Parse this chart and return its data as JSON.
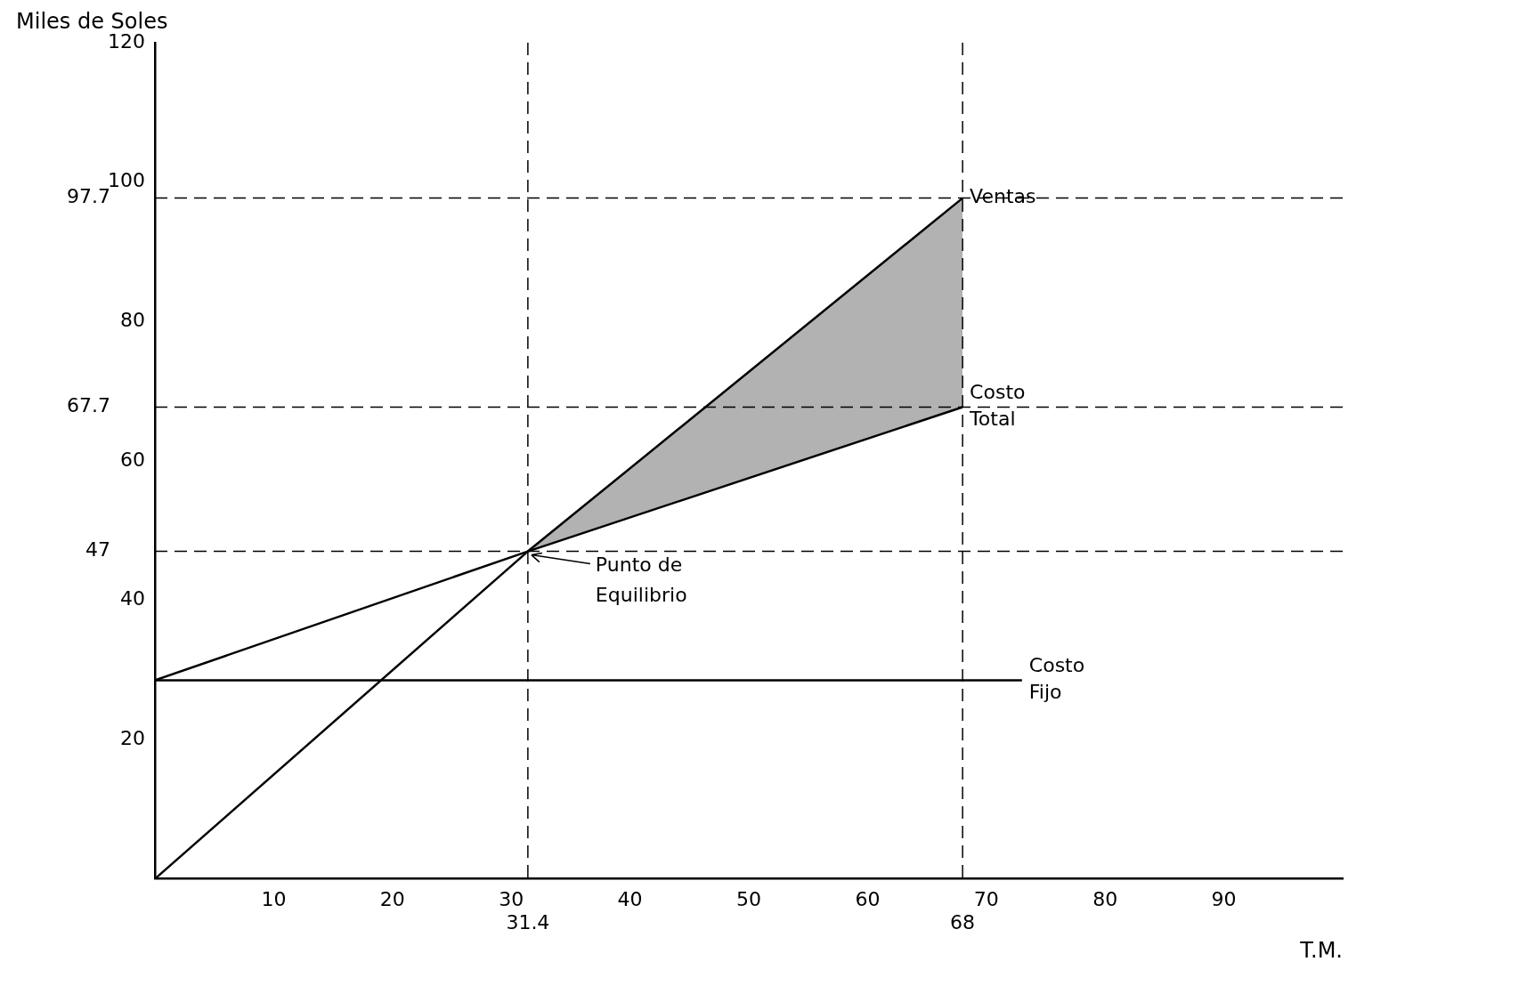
{
  "chart_data": {
    "type": "line",
    "xlabel": "T.M.",
    "ylabel": "Miles de Soles",
    "xlim": [
      0,
      100
    ],
    "ylim": [
      0,
      120
    ],
    "xticks": [
      10,
      20,
      30,
      40,
      50,
      60,
      70,
      80,
      90
    ],
    "yticks": [
      20,
      40,
      60,
      80,
      100,
      120
    ],
    "grid": false,
    "legend": false,
    "marker": "none",
    "line_style": "solid",
    "series": [
      {
        "name": "Ventas",
        "color": "#000000",
        "x": [
          0,
          31.4,
          68
        ],
        "values": [
          0,
          47,
          97.7
        ],
        "lower": [
          null,
          47,
          67.7
        ],
        "upper": [
          null,
          47,
          97.7
        ]
      },
      {
        "name": "Costo Total",
        "color": "#000000",
        "x": [
          0,
          31.4,
          68
        ],
        "values": [
          28.5,
          47,
          67.7
        ]
      },
      {
        "name": "Costo Fijo",
        "color": "#000000",
        "x": [
          0,
          73
        ],
        "values": [
          28.5,
          28.5
        ]
      }
    ],
    "ref_lines": [
      {
        "axis": "y",
        "value": 97.7,
        "label": "97.7",
        "line_style": "dashed"
      },
      {
        "axis": "y",
        "value": 67.7,
        "label": "67.7",
        "line_style": "dashed"
      },
      {
        "axis": "y",
        "value": 47,
        "label": "47",
        "line_style": "dashed"
      },
      {
        "axis": "x",
        "value": 31.4,
        "label": "31.4",
        "line_style": "dashed"
      },
      {
        "axis": "x",
        "value": 68,
        "label": "68",
        "line_style": "dashed"
      }
    ],
    "annotations": [
      {
        "text": "Punto de Equilibrio",
        "x": 31.4,
        "y": 47
      }
    ]
  }
}
